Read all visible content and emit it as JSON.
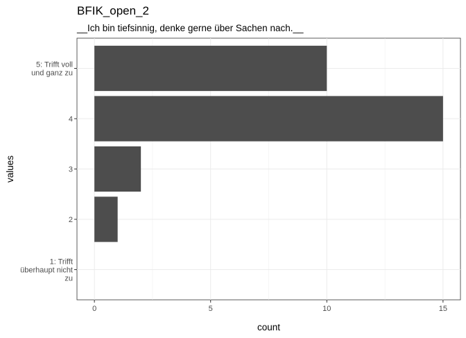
{
  "chart_data": {
    "type": "bar",
    "orientation": "horizontal",
    "title": "BFIK_open_2",
    "subtitle": "__Ich bin tiefsinnig, denke gerne über Sachen nach.__",
    "xlabel": "count",
    "ylabel": "values",
    "categories": [
      [
        "1: Trifft",
        "überhaupt nicht",
        "zu"
      ],
      [
        "2"
      ],
      [
        "3"
      ],
      [
        "4"
      ],
      [
        "5: Trifft voll",
        "und ganz zu"
      ]
    ],
    "values": [
      0,
      1,
      2,
      15,
      10
    ],
    "xlim": [
      -0.75,
      15.75
    ],
    "xticks": [
      0,
      5,
      10,
      15
    ],
    "grid": true,
    "bar_color": "#4d4d4d",
    "grid_color": "#ebebeb"
  }
}
